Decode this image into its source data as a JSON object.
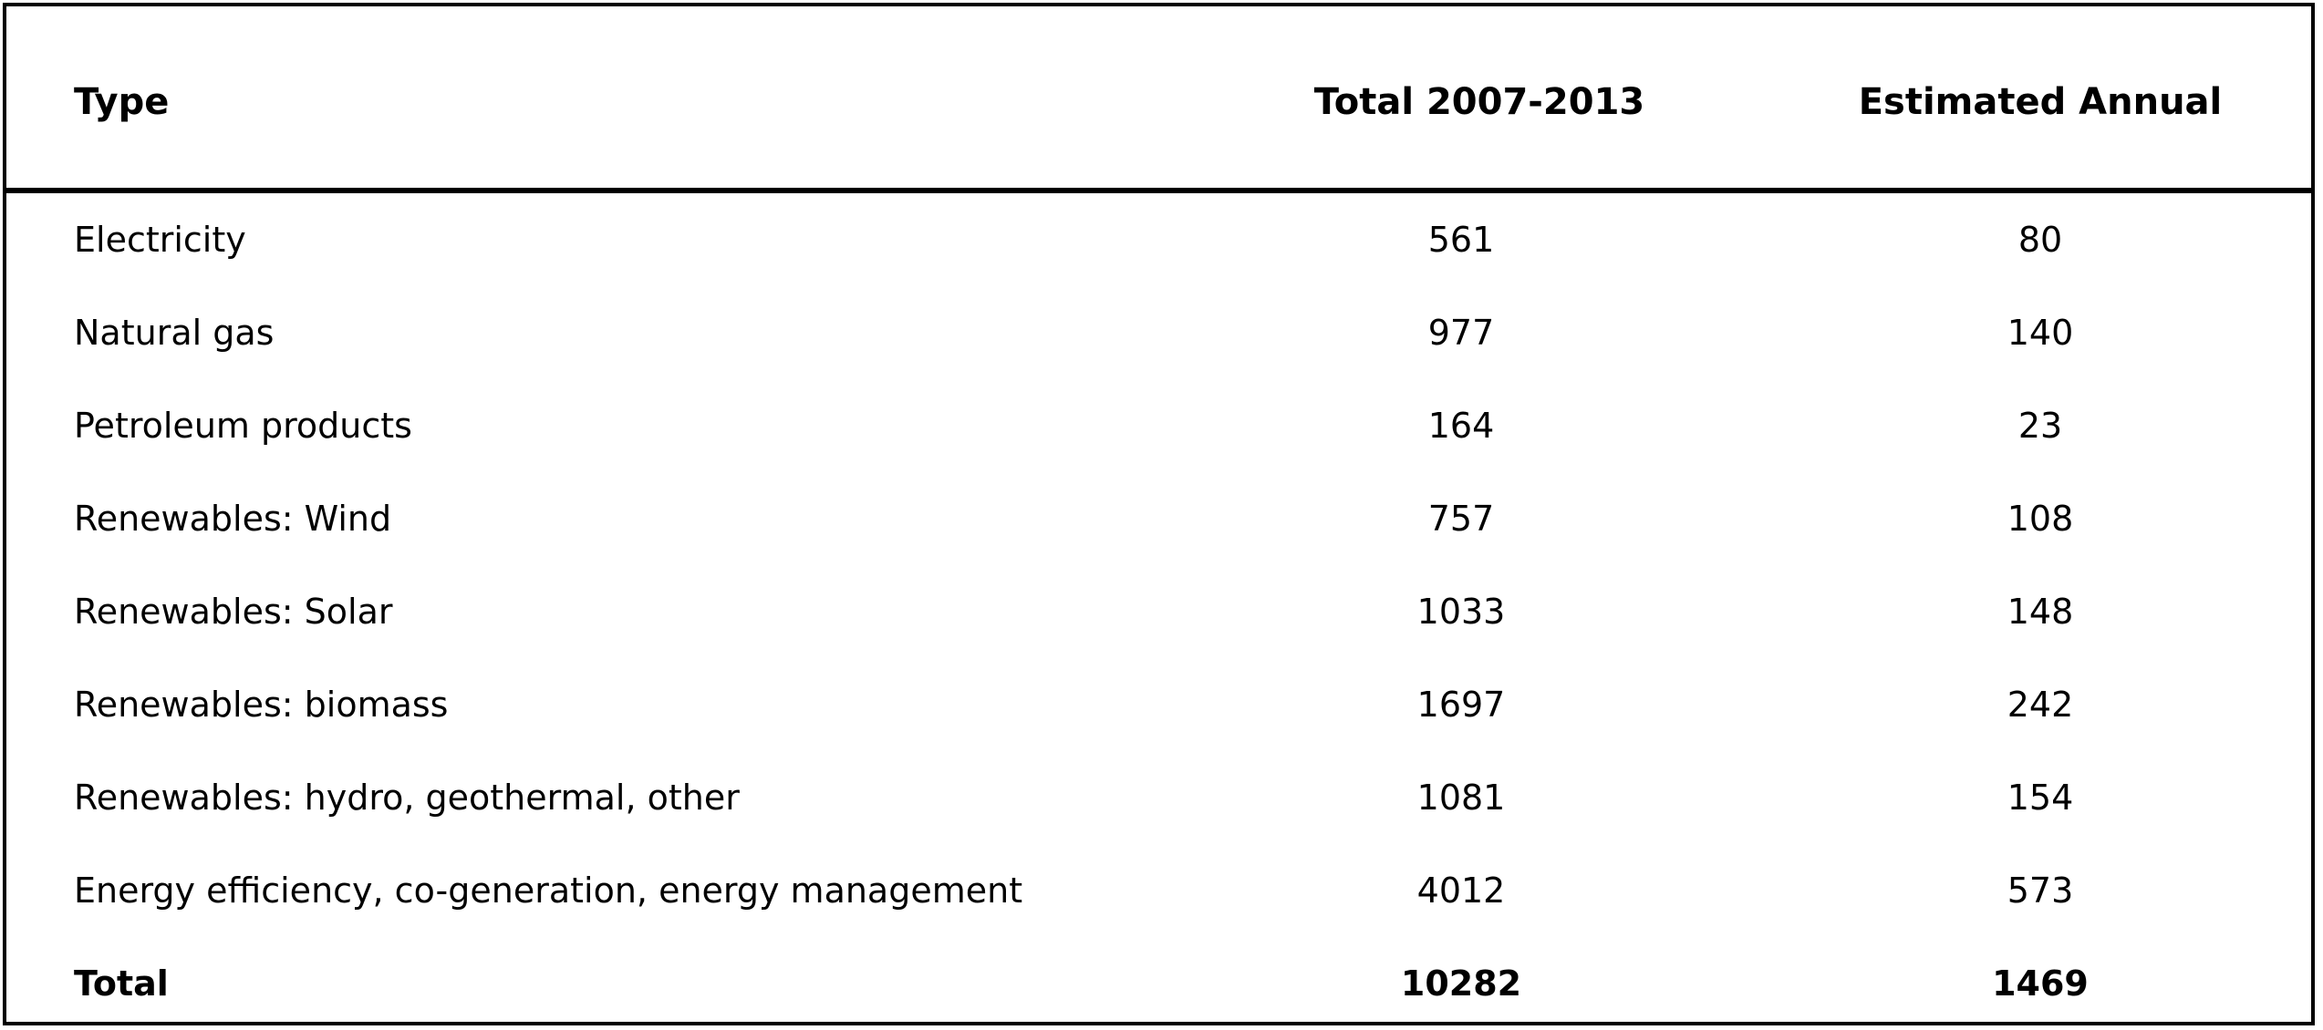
{
  "table": {
    "headers": {
      "type": "Type",
      "total": "Total 2007-2013",
      "annual": "Estimated Annual"
    },
    "rows": [
      {
        "type": "Electricity",
        "total": "561",
        "annual": "80"
      },
      {
        "type": "Natural gas",
        "total": "977",
        "annual": "140"
      },
      {
        "type": "Petroleum products",
        "total": "164",
        "annual": "23"
      },
      {
        "type": "Renewables: Wind",
        "total": "757",
        "annual": "108"
      },
      {
        "type": "Renewables: Solar",
        "total": "1033",
        "annual": "148"
      },
      {
        "type": "Renewables: biomass",
        "total": "1697",
        "annual": "242"
      },
      {
        "type": "Renewables: hydro, geothermal, other",
        "total": "1081",
        "annual": "154"
      },
      {
        "type": "Energy efficiency, co-generation, energy management",
        "total": "4012",
        "annual": "573"
      }
    ],
    "total_row": {
      "type": "Total",
      "total": "10282",
      "annual": "1469"
    }
  }
}
